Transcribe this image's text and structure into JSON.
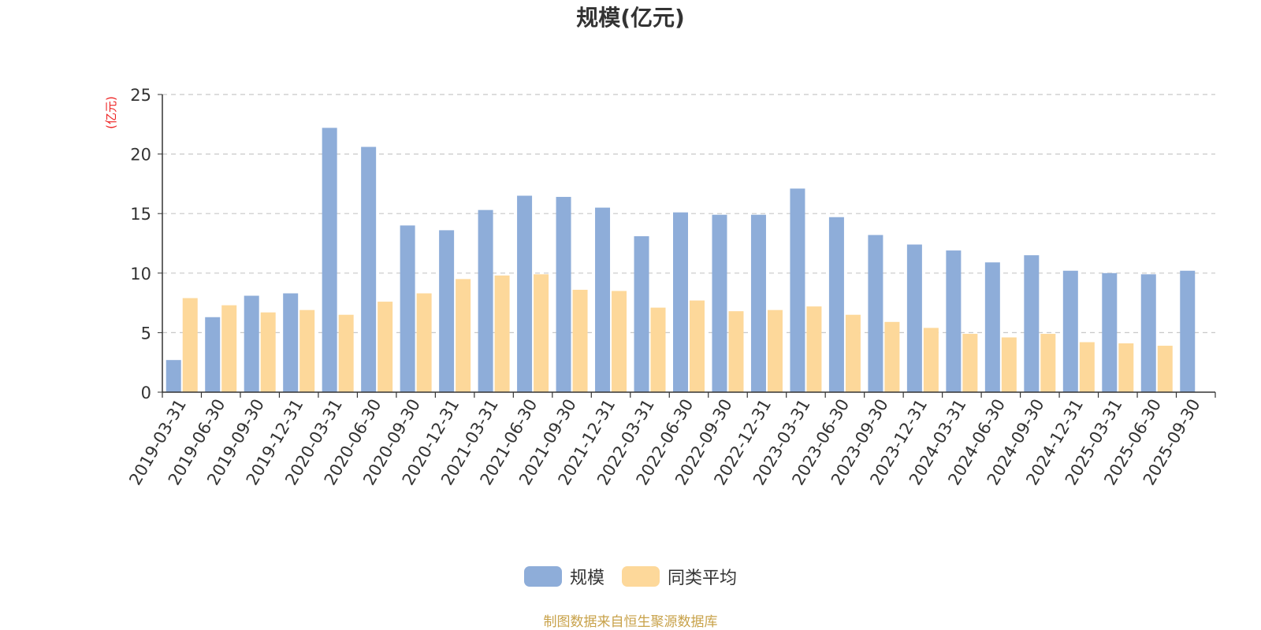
{
  "chart_data": {
    "type": "bar",
    "title": "规模(亿元)",
    "ylabel": "(亿元)",
    "xlabel": "",
    "ylim": [
      0,
      25
    ],
    "yticks": [
      0,
      5,
      10,
      15,
      20,
      25
    ],
    "grid": true,
    "legend_position": "bottom-center",
    "categories": [
      "2019-03-31",
      "2019-06-30",
      "2019-09-30",
      "2019-12-31",
      "2020-03-31",
      "2020-06-30",
      "2020-09-30",
      "2020-12-31",
      "2021-03-31",
      "2021-06-30",
      "2021-09-30",
      "2021-12-31",
      "2022-03-31",
      "2022-06-30",
      "2022-09-30",
      "2022-12-31",
      "2023-03-31",
      "2023-06-30",
      "2023-09-30",
      "2023-12-31",
      "2024-03-31",
      "2024-06-30",
      "2024-09-30",
      "2024-12-31",
      "2025-03-31",
      "2025-06-30",
      "2025-09-30"
    ],
    "series": [
      {
        "name": "规模",
        "color": "#8eadd9",
        "values": [
          2.7,
          6.3,
          8.1,
          8.3,
          22.2,
          20.6,
          14.0,
          13.6,
          15.3,
          16.5,
          16.4,
          15.5,
          13.1,
          15.1,
          14.9,
          14.9,
          17.1,
          14.7,
          13.2,
          12.4,
          11.9,
          10.9,
          11.5,
          10.2,
          10.0,
          9.9,
          10.2
        ]
      },
      {
        "name": "同类平均",
        "color": "#fdd89a",
        "values": [
          7.9,
          7.3,
          6.7,
          6.9,
          6.5,
          7.6,
          8.3,
          9.5,
          9.8,
          9.9,
          8.6,
          8.5,
          7.1,
          7.7,
          6.8,
          6.9,
          7.2,
          6.5,
          5.9,
          5.4,
          4.9,
          4.6,
          4.9,
          4.2,
          4.1,
          3.9,
          null
        ]
      }
    ]
  },
  "footer": {
    "source": "制图数据来自恒生聚源数据库"
  }
}
